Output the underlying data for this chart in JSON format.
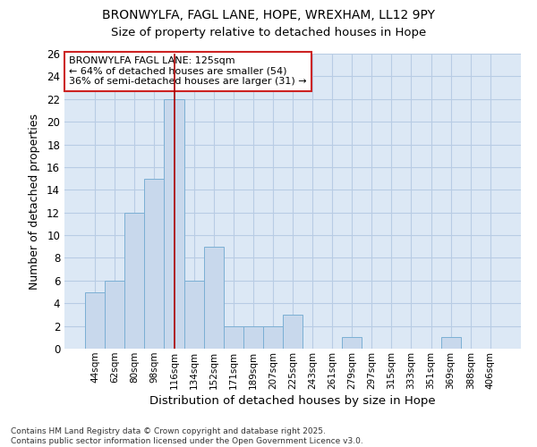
{
  "title_line1": "BRONWYLFA, FAGL LANE, HOPE, WREXHAM, LL12 9PY",
  "title_line2": "Size of property relative to detached houses in Hope",
  "xlabel": "Distribution of detached houses by size in Hope",
  "ylabel": "Number of detached properties",
  "categories": [
    "44sqm",
    "62sqm",
    "80sqm",
    "98sqm",
    "116sqm",
    "134sqm",
    "152sqm",
    "171sqm",
    "189sqm",
    "207sqm",
    "225sqm",
    "243sqm",
    "261sqm",
    "279sqm",
    "297sqm",
    "315sqm",
    "333sqm",
    "351sqm",
    "369sqm",
    "388sqm",
    "406sqm"
  ],
  "values": [
    5,
    6,
    12,
    15,
    22,
    6,
    9,
    2,
    2,
    2,
    3,
    0,
    0,
    1,
    0,
    0,
    0,
    0,
    1,
    0,
    0
  ],
  "bar_color": "#c8d8ec",
  "bar_edgecolor": "#7bafd4",
  "highlight_index": 4,
  "marker_line_color": "#aa0000",
  "annotation_box_text": "BRONWYLFA FAGL LANE: 125sqm\n← 64% of detached houses are smaller (54)\n36% of semi-detached houses are larger (31) →",
  "annotation_box_facecolor": "#ffffff",
  "annotation_box_edgecolor": "#cc2222",
  "ylim": [
    0,
    26
  ],
  "yticks": [
    0,
    2,
    4,
    6,
    8,
    10,
    12,
    14,
    16,
    18,
    20,
    22,
    24,
    26
  ],
  "grid_color": "#b8cce4",
  "plot_bg_color": "#dce8f5",
  "fig_bg_color": "#ffffff",
  "footer_text": "Contains HM Land Registry data © Crown copyright and database right 2025.\nContains public sector information licensed under the Open Government Licence v3.0.",
  "figsize": [
    6.0,
    5.0
  ],
  "dpi": 100
}
